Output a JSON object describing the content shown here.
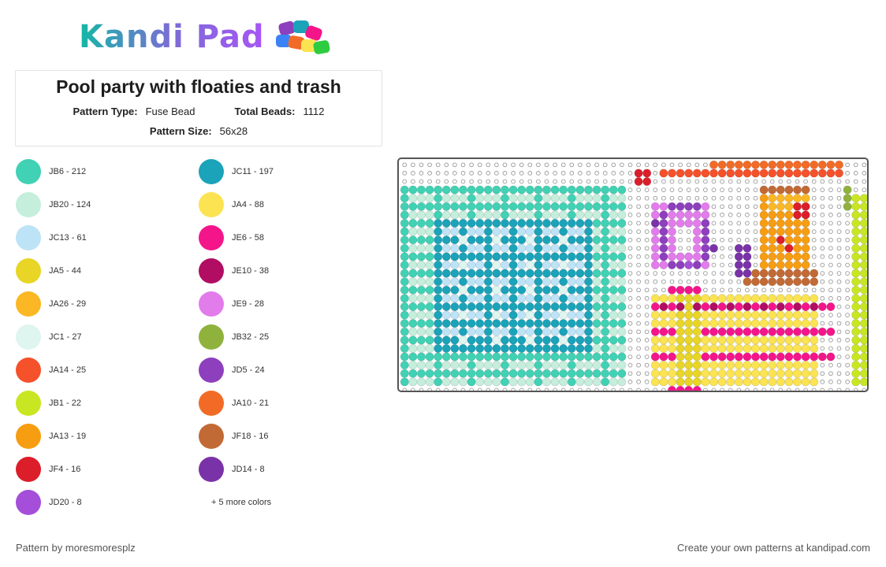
{
  "logo": {
    "text": "Kandi Pad"
  },
  "pattern": {
    "title": "Pool party with floaties and trash",
    "type_label": "Pattern Type:",
    "type_value": "Fuse Bead",
    "total_label": "Total Beads:",
    "total_value": "1112",
    "size_label": "Pattern Size:",
    "size_value": "56x28"
  },
  "colors": [
    {
      "label": "JB6 - 212",
      "hex": "#41d1b4"
    },
    {
      "label": "JC11 - 197",
      "hex": "#1aa3b9"
    },
    {
      "label": "JB20 - 124",
      "hex": "#c5eedc"
    },
    {
      "label": "JA4 - 88",
      "hex": "#fbe352"
    },
    {
      "label": "JC13 - 61",
      "hex": "#bde3f7"
    },
    {
      "label": "JE6 - 58",
      "hex": "#f5158a"
    },
    {
      "label": "JA5 - 44",
      "hex": "#e8d525"
    },
    {
      "label": "JE10 - 38",
      "hex": "#b10d63"
    },
    {
      "label": "JA26 - 29",
      "hex": "#fbb724"
    },
    {
      "label": "JE9 - 28",
      "hex": "#e27ceb"
    },
    {
      "label": "JC1 - 27",
      "hex": "#dff5ef"
    },
    {
      "label": "JB32 - 25",
      "hex": "#8fb23c"
    },
    {
      "label": "JA14 - 25",
      "hex": "#f5512b"
    },
    {
      "label": "JD5 - 24",
      "hex": "#8d3fbd"
    },
    {
      "label": "JB1 - 22",
      "hex": "#c9e622"
    },
    {
      "label": "JA10 - 21",
      "hex": "#f26b26"
    },
    {
      "label": "JA13 - 19",
      "hex": "#f79d12"
    },
    {
      "label": "JF18 - 16",
      "hex": "#c26a35"
    },
    {
      "label": "JF4 - 16",
      "hex": "#dc1e2a"
    },
    {
      "label": "JD14 - 8",
      "hex": "#7a32a8"
    },
    {
      "label": "JD20 - 8",
      "hex": "#a54ed9"
    }
  ],
  "more_colors": "+ 5 more colors",
  "footer": {
    "left": "Pattern by moresmoresplz",
    "right": "Create your own patterns at kandipad.com"
  }
}
